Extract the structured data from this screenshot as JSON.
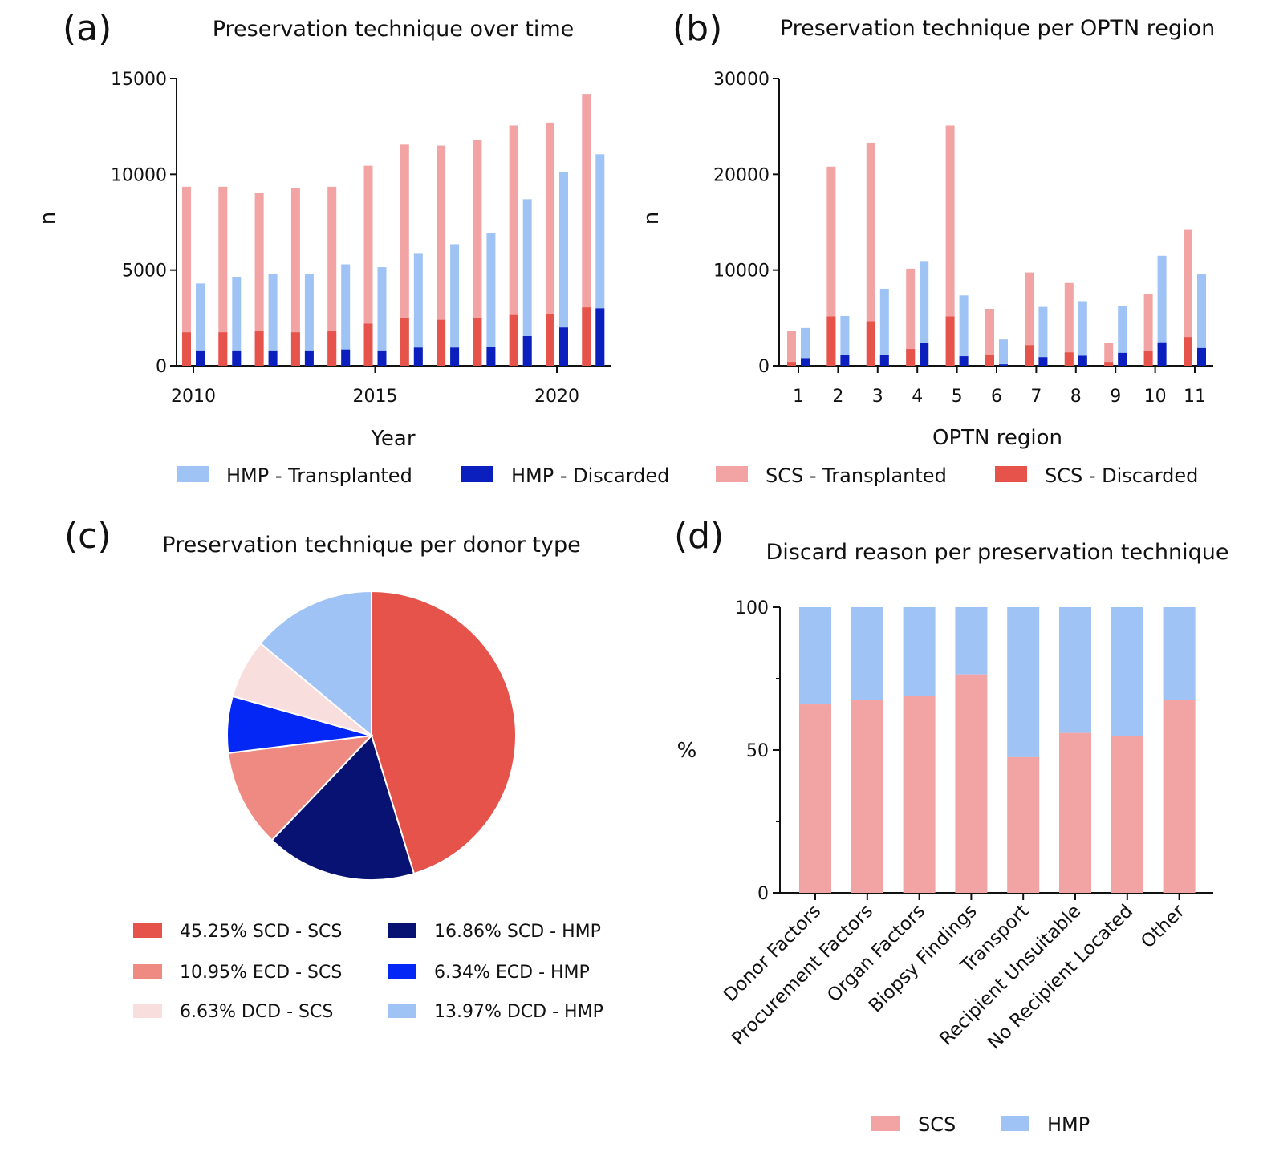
{
  "figure": {
    "panels": [
      {
        "letter": "(a)",
        "title": "Preservation technique over time"
      },
      {
        "letter": "(b)",
        "title": "Preservation technique per  OPTN region"
      },
      {
        "letter": "(c)",
        "title": "Preservation technique per donor type"
      },
      {
        "letter": "(d)",
        "title": "Discard reason per preservation technique"
      }
    ],
    "shared_legend": [
      {
        "label": "HMP - Transplanted",
        "color": "#9fc3f4"
      },
      {
        "label": "HMP - Discarded",
        "color": "#0b1fbf"
      },
      {
        "label": "SCS - Transplanted",
        "color": "#f2a3a3"
      },
      {
        "label": "SCS - Discarded",
        "color": "#e5534b"
      }
    ]
  },
  "chart_data": [
    {
      "type": "bar",
      "title": "Preservation technique over time",
      "xlabel": "Year",
      "ylabel": "n",
      "ylim": [
        0,
        15000
      ],
      "yticks": [
        0,
        5000,
        10000,
        15000
      ],
      "xticks": [
        2010,
        2015,
        2020
      ],
      "categories": [
        2010,
        2011,
        2012,
        2013,
        2014,
        2015,
        2016,
        2017,
        2018,
        2019,
        2020,
        2021
      ],
      "series": [
        {
          "name": "SCS - Transplanted",
          "group": "SCS",
          "values": [
            9350,
            9350,
            9050,
            9300,
            9350,
            10450,
            11550,
            11500,
            11800,
            12550,
            12700,
            14200
          ]
        },
        {
          "name": "SCS - Discarded",
          "group": "SCS",
          "values": [
            1750,
            1750,
            1800,
            1750,
            1800,
            2200,
            2500,
            2400,
            2500,
            2650,
            2700,
            3050
          ]
        },
        {
          "name": "HMP - Transplanted",
          "group": "HMP",
          "values": [
            4300,
            4650,
            4800,
            4800,
            5300,
            5150,
            5850,
            6350,
            6950,
            8700,
            10100,
            11050
          ]
        },
        {
          "name": "HMP - Discarded",
          "group": "HMP",
          "values": [
            800,
            800,
            800,
            800,
            850,
            800,
            950,
            950,
            1000,
            1550,
            2000,
            3000
          ]
        }
      ],
      "grid": false,
      "legend": "bottom"
    },
    {
      "type": "bar",
      "title": "Preservation technique per  OPTN region",
      "xlabel": "OPTN region",
      "ylabel": "n",
      "ylim": [
        0,
        30000
      ],
      "yticks": [
        0,
        10000,
        20000,
        30000
      ],
      "categories": [
        "1",
        "2",
        "3",
        "4",
        "5",
        "6",
        "7",
        "8",
        "9",
        "10",
        "11"
      ],
      "series": [
        {
          "name": "SCS - Transplanted",
          "group": "SCS",
          "values": [
            3600,
            20800,
            23300,
            10150,
            25100,
            5950,
            9750,
            8650,
            2350,
            7500,
            14200
          ]
        },
        {
          "name": "SCS - Discarded",
          "group": "SCS",
          "values": [
            400,
            5150,
            4650,
            1750,
            5150,
            1150,
            2150,
            1400,
            400,
            1550,
            3000
          ]
        },
        {
          "name": "HMP - Transplanted",
          "group": "HMP",
          "values": [
            3950,
            5200,
            8050,
            10950,
            7350,
            2750,
            6150,
            6750,
            6250,
            11500,
            9550
          ]
        },
        {
          "name": "HMP - Discarded",
          "group": "HMP",
          "values": [
            800,
            1100,
            1100,
            2350,
            1000,
            150,
            900,
            1050,
            1350,
            2450,
            1850
          ]
        }
      ],
      "grid": false,
      "legend": "bottom"
    },
    {
      "type": "pie",
      "title": "Preservation technique per donor type",
      "slices": [
        {
          "label": "SCD - SCS",
          "pct_label": "45.25%",
          "value": 45.25,
          "color": "#e5534b"
        },
        {
          "label": "SCD - HMP",
          "pct_label": "16.86%",
          "value": 16.86,
          "color": "#071273"
        },
        {
          "label": "ECD - SCS",
          "pct_label": "10.95%",
          "value": 10.95,
          "color": "#ee8a82"
        },
        {
          "label": "ECD - HMP",
          "pct_label": "6.34%",
          "value": 6.34,
          "color": "#0527f5"
        },
        {
          "label": "DCD - SCS",
          "pct_label": "6.63%",
          "value": 6.63,
          "color": "#f9dede"
        },
        {
          "label": "DCD - HMP",
          "pct_label": "13.97%",
          "value": 13.97,
          "color": "#9fc3f4"
        }
      ],
      "legend": "bottom"
    },
    {
      "type": "bar",
      "title": "Discard reason per preservation technique",
      "ylabel": "%",
      "ylim": [
        0,
        100
      ],
      "yticks": [
        0,
        50,
        100
      ],
      "categories": [
        "Donor Factors",
        "Procurement Factors",
        "Organ Factors",
        "Biopsy Findings",
        "Transport",
        "Recipient Unsuitable",
        "No Recipient Located",
        "Other"
      ],
      "series": [
        {
          "name": "SCS",
          "values": [
            66,
            67.5,
            69,
            76.5,
            47.5,
            56,
            55,
            67.5
          ],
          "color": "#f2a3a3"
        },
        {
          "name": "HMP",
          "values": [
            34,
            32.5,
            31,
            23.5,
            52.5,
            44,
            45,
            32.5
          ],
          "color": "#9fc3f4"
        }
      ],
      "stacked": true,
      "grid": false,
      "legend": "bottom"
    }
  ]
}
